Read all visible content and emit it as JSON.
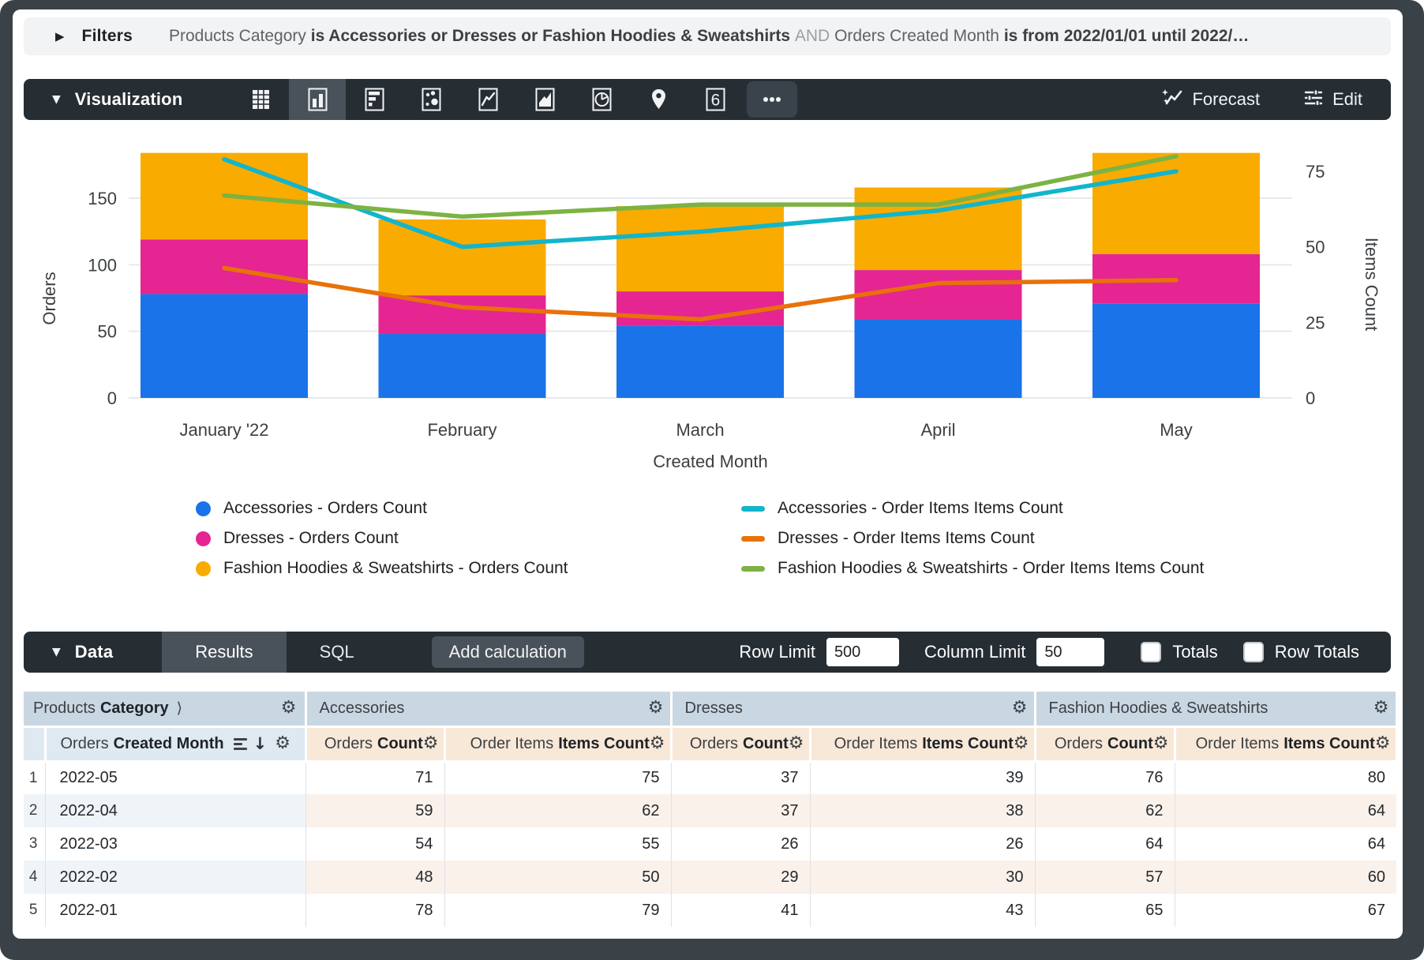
{
  "filters": {
    "label": "Filters",
    "clause1_field": "Products Category",
    "clause1_predicate": "is Accessories or Dresses or Fashion Hoodies & Sweatshirts",
    "conjunction": "AND",
    "clause2_field": "Orders Created Month",
    "clause2_predicate": "is from 2022/01/01 until 2022/…"
  },
  "viz_toolbar": {
    "label": "Visualization",
    "icons": [
      {
        "name": "table"
      },
      {
        "name": "column",
        "selected": true
      },
      {
        "name": "bar"
      },
      {
        "name": "scatter"
      },
      {
        "name": "line"
      },
      {
        "name": "area"
      },
      {
        "name": "pie"
      },
      {
        "name": "map"
      },
      {
        "name": "single-value",
        "glyph": "6"
      },
      {
        "name": "more"
      }
    ],
    "forecast_label": "Forecast",
    "edit_label": "Edit"
  },
  "chart_data": {
    "type": "combo-stacked-bar-line",
    "categories": [
      "January '22",
      "February",
      "March",
      "April",
      "May"
    ],
    "x_axis_title": "Created Month",
    "y_left": {
      "title": "Orders",
      "ticks": [
        0,
        50,
        100,
        150
      ],
      "range": [
        0,
        196
      ]
    },
    "y_right": {
      "title": "Items Count",
      "ticks": [
        0,
        25,
        50,
        75
      ],
      "range": [
        0,
        86
      ]
    },
    "grid": "horizontal-left-axis",
    "bar_series": [
      {
        "name": "Accessories - Orders Count",
        "color": "#1A73E8",
        "values": [
          78,
          48,
          54,
          59,
          71
        ]
      },
      {
        "name": "Dresses - Orders Count",
        "color": "#E52592",
        "values": [
          41,
          29,
          26,
          37,
          37
        ]
      },
      {
        "name": "Fashion Hoodies & Sweatshirts - Orders Count",
        "color": "#F9AB00",
        "values": [
          65,
          57,
          64,
          62,
          76
        ]
      }
    ],
    "line_series": [
      {
        "name": "Accessories - Order Items Items Count",
        "color": "#12B5CB",
        "values": [
          79,
          50,
          55,
          62,
          75
        ]
      },
      {
        "name": "Dresses - Order Items Items Count",
        "color": "#E8710A",
        "values": [
          43,
          30,
          26,
          38,
          39
        ]
      },
      {
        "name": "Fashion Hoodies & Sweatshirts - Order Items Items Count",
        "color": "#7CB342",
        "values": [
          67,
          60,
          64,
          64,
          80
        ]
      }
    ]
  },
  "legend": {
    "left": [
      {
        "label": "Accessories - Orders Count",
        "color": "#1A73E8",
        "marker": "dot"
      },
      {
        "label": "Dresses - Orders Count",
        "color": "#E52592",
        "marker": "dot"
      },
      {
        "label": "Fashion Hoodies & Sweatshirts - Orders Count",
        "color": "#F9AB00",
        "marker": "dot"
      }
    ],
    "right": [
      {
        "label": "Accessories - Order Items Items Count",
        "color": "#12B5CB",
        "marker": "line"
      },
      {
        "label": "Dresses - Order Items Items Count",
        "color": "#E8710A",
        "marker": "line"
      },
      {
        "label": "Fashion Hoodies & Sweatshirts - Order Items Items Count",
        "color": "#7CB342",
        "marker": "line"
      }
    ]
  },
  "data_toolbar": {
    "label": "Data",
    "tabs": [
      {
        "label": "Results",
        "active": true
      },
      {
        "label": "SQL",
        "active": false
      }
    ],
    "add_calculation_label": "Add calculation",
    "row_limit_label": "Row Limit",
    "row_limit_value": "500",
    "column_limit_label": "Column Limit",
    "column_limit_value": "50",
    "totals_label": "Totals",
    "totals_checked": false,
    "row_totals_label": "Row Totals",
    "row_totals_checked": false
  },
  "table": {
    "groups": [
      {
        "label_light": "Products",
        "label_bold": "Category",
        "has_chevron": true
      },
      {
        "label": "Accessories"
      },
      {
        "label": "Dresses"
      },
      {
        "label": "Fashion Hoodies & Sweatshirts"
      }
    ],
    "dimension_subheader": {
      "light": "Orders",
      "bold": "Created Month"
    },
    "measure_subheaders": [
      {
        "light": "Orders",
        "bold": "Count"
      },
      {
        "light": "Order Items",
        "bold": "Items Count"
      }
    ],
    "rows": [
      {
        "n": "1",
        "month": "2022-05",
        "values": [
          71,
          75,
          37,
          39,
          76,
          80
        ]
      },
      {
        "n": "2",
        "month": "2022-04",
        "values": [
          59,
          62,
          37,
          38,
          62,
          64
        ]
      },
      {
        "n": "3",
        "month": "2022-03",
        "values": [
          54,
          55,
          26,
          26,
          64,
          64
        ]
      },
      {
        "n": "4",
        "month": "2022-02",
        "values": [
          48,
          50,
          29,
          30,
          57,
          60
        ]
      },
      {
        "n": "5",
        "month": "2022-01",
        "values": [
          78,
          79,
          41,
          43,
          65,
          67
        ]
      }
    ]
  },
  "colors": {
    "toolbar_dark": "#262d33",
    "toolbar_active": "#49525a",
    "filter_bar_bg": "#f1f3f4",
    "frame": "#3a4147",
    "grid_line": "#e7e9ec",
    "group_header_bg": "#c9d7e3",
    "dim_header_bg": "#dfe9f2",
    "measure_header_bg": "#f8e8d8",
    "stripe_dim": "#eff4f9",
    "stripe_measure": "#faf1ea"
  }
}
